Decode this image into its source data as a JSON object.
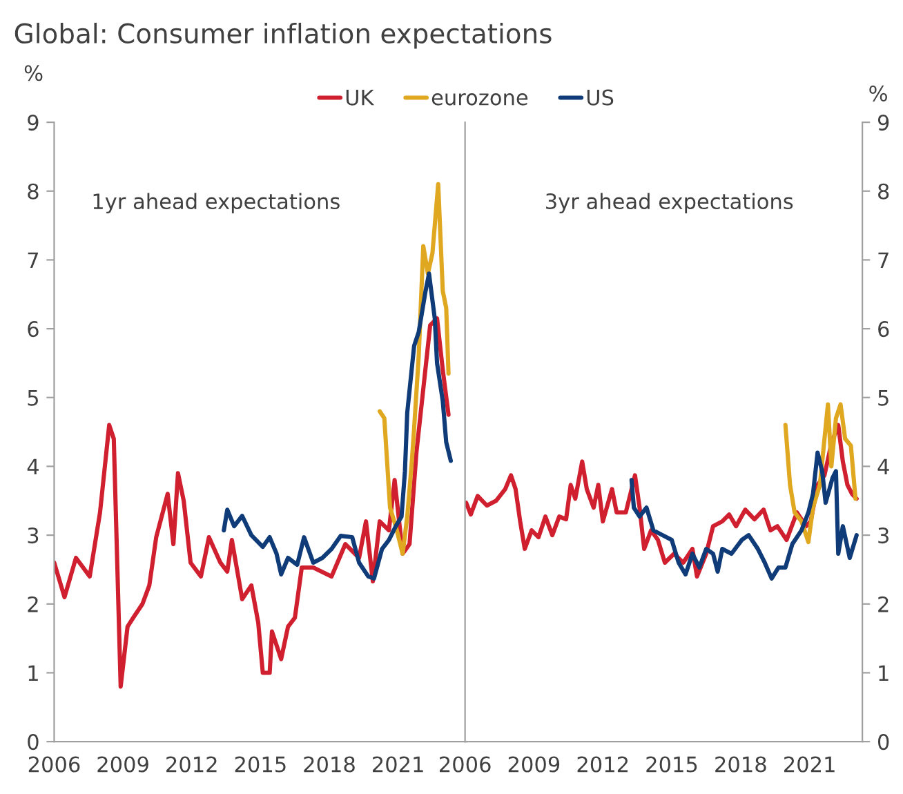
{
  "chart_data": [
    {
      "type": "line",
      "title": "Global: Consumer inflation expectations",
      "ylabel": "%",
      "annotations": [
        "1yr ahead expectations"
      ],
      "xlim": [
        2006,
        2024
      ],
      "xticks": [
        2006,
        2009,
        2012,
        2015,
        2018,
        2021
      ],
      "ylim": [
        0,
        9
      ],
      "yticks": [
        0,
        1,
        2,
        3,
        4,
        5,
        6,
        7,
        8,
        9
      ],
      "grid": false,
      "legend": "top",
      "line_style": "solid",
      "marker": "none",
      "series": [
        {
          "name": "UK",
          "color": "#d0202f",
          "x": [
            2006.0,
            2006.45,
            2006.95,
            2007.55,
            2008.0,
            2008.4,
            2008.6,
            2008.9,
            2009.2,
            2009.45,
            2009.85,
            2010.15,
            2010.45,
            2010.95,
            2011.2,
            2011.4,
            2011.65,
            2011.95,
            2012.4,
            2012.75,
            2013.25,
            2013.55,
            2013.75,
            2014.2,
            2014.6,
            2014.9,
            2015.1,
            2015.4,
            2015.5,
            2015.9,
            2016.2,
            2016.5,
            2016.8,
            2017.3,
            2018.1,
            2018.7,
            2019.3,
            2019.6,
            2019.9,
            2020.2,
            2020.6,
            2020.85,
            2021.2,
            2021.5,
            2021.8,
            2022.4,
            2022.7,
            2022.95,
            2023.2
          ],
          "values": [
            2.6,
            2.1,
            2.67,
            2.4,
            3.33,
            4.6,
            4.4,
            0.8,
            1.67,
            1.8,
            2.0,
            2.27,
            2.97,
            3.6,
            2.87,
            3.9,
            3.5,
            2.6,
            2.4,
            2.97,
            2.6,
            2.47,
            2.93,
            2.07,
            2.27,
            1.73,
            1.0,
            1.0,
            1.6,
            1.2,
            1.67,
            1.8,
            2.53,
            2.53,
            2.4,
            2.87,
            2.67,
            3.2,
            2.33,
            3.2,
            3.07,
            3.8,
            2.73,
            2.87,
            4.2,
            6.05,
            6.15,
            5.4,
            4.75
          ]
        },
        {
          "name": "eurozone",
          "color": "#e0a820",
          "x": [
            2020.2,
            2020.4,
            2020.65,
            2020.9,
            2021.2,
            2021.4,
            2021.6,
            2021.7,
            2021.9,
            2022.1,
            2022.3,
            2022.5,
            2022.75,
            2022.95,
            2023.1,
            2023.2
          ],
          "values": [
            4.8,
            4.7,
            3.4,
            3.13,
            2.73,
            3.27,
            4.07,
            4.55,
            5.6,
            7.2,
            6.8,
            7.1,
            8.1,
            6.55,
            6.3,
            5.35
          ]
        },
        {
          "name": "US",
          "color": "#0f3c78",
          "x": [
            2013.4,
            2013.55,
            2013.85,
            2014.2,
            2014.6,
            2015.1,
            2015.4,
            2015.7,
            2015.9,
            2016.2,
            2016.6,
            2016.9,
            2017.3,
            2017.7,
            2018.1,
            2018.5,
            2019.0,
            2019.3,
            2019.7,
            2019.95,
            2020.3,
            2020.6,
            2020.9,
            2021.15,
            2021.3,
            2021.4,
            2021.7,
            2021.9,
            2022.2,
            2022.35,
            2022.6,
            2022.7,
            2022.95,
            2023.1,
            2023.3
          ],
          "values": [
            3.07,
            3.37,
            3.13,
            3.28,
            3.0,
            2.83,
            2.97,
            2.73,
            2.43,
            2.67,
            2.57,
            2.97,
            2.6,
            2.67,
            2.8,
            2.99,
            2.97,
            2.6,
            2.4,
            2.37,
            2.8,
            2.93,
            3.13,
            3.27,
            3.93,
            4.78,
            5.75,
            5.95,
            6.55,
            6.8,
            6.15,
            5.5,
            4.95,
            4.35,
            4.08
          ]
        }
      ]
    },
    {
      "type": "line",
      "ylabel": "%",
      "annotations": [
        "3yr ahead expectations"
      ],
      "xlim": [
        2006,
        2023.3
      ],
      "xticks": [
        2006,
        2009,
        2012,
        2015,
        2018,
        2021
      ],
      "ylim": [
        0,
        9
      ],
      "yticks": [
        0,
        1,
        2,
        3,
        4,
        5,
        6,
        7,
        8,
        9
      ],
      "grid": false,
      "line_style": "solid",
      "marker": "none",
      "series": [
        {
          "color": "#d0202f",
          "x": [
            2006.05,
            2006.25,
            2006.55,
            2006.95,
            2007.35,
            2007.75,
            2008.0,
            2008.2,
            2008.4,
            2008.6,
            2008.9,
            2009.2,
            2009.5,
            2009.8,
            2010.1,
            2010.4,
            2010.6,
            2010.8,
            2011.1,
            2011.3,
            2011.6,
            2011.8,
            2012.0,
            2012.4,
            2012.6,
            2013.0,
            2013.4,
            2013.6,
            2013.8,
            2014.1,
            2014.4,
            2014.7,
            2015.1,
            2015.5,
            2015.9,
            2016.1,
            2016.5,
            2016.8,
            2017.2,
            2017.5,
            2017.8,
            2018.2,
            2018.6,
            2019.0,
            2019.3,
            2019.6,
            2020.0,
            2020.45,
            2020.85,
            2021.05,
            2021.35,
            2021.65,
            2021.95,
            2022.25,
            2022.45,
            2022.65,
            2022.85,
            2023.05
          ],
          "values": [
            3.47,
            3.3,
            3.57,
            3.43,
            3.5,
            3.67,
            3.87,
            3.67,
            3.2,
            2.8,
            3.07,
            2.97,
            3.27,
            3.0,
            3.27,
            3.23,
            3.73,
            3.53,
            4.07,
            3.67,
            3.4,
            3.73,
            3.2,
            3.67,
            3.33,
            3.33,
            3.87,
            3.4,
            2.8,
            3.07,
            2.93,
            2.6,
            2.73,
            2.6,
            2.8,
            2.4,
            2.73,
            3.13,
            3.2,
            3.3,
            3.13,
            3.37,
            3.23,
            3.37,
            3.07,
            3.13,
            2.93,
            3.33,
            3.13,
            3.2,
            3.73,
            3.87,
            4.33,
            4.6,
            4.07,
            3.73,
            3.6,
            3.53
          ]
        },
        {
          "color": "#e0a820",
          "x": [
            2019.95,
            2020.15,
            2020.35,
            2020.65,
            2020.95,
            2021.15,
            2021.45,
            2021.8,
            2021.95,
            2022.15,
            2022.35,
            2022.55,
            2022.8,
            2023.0
          ],
          "values": [
            4.6,
            3.73,
            3.33,
            3.2,
            2.9,
            3.4,
            3.73,
            4.9,
            4.0,
            4.7,
            4.9,
            4.4,
            4.3,
            3.53
          ]
        },
        {
          "color": "#0f3c78",
          "x": [
            2013.25,
            2013.35,
            2013.6,
            2013.9,
            2014.2,
            2014.6,
            2015.0,
            2015.3,
            2015.6,
            2015.9,
            2016.2,
            2016.5,
            2016.8,
            2017.0,
            2017.2,
            2017.6,
            2018.05,
            2018.35,
            2018.75,
            2019.05,
            2019.35,
            2019.65,
            2019.95,
            2020.25,
            2020.65,
            2020.95,
            2021.15,
            2021.35,
            2021.55,
            2021.7,
            2022.0,
            2022.15,
            2022.25,
            2022.45,
            2022.75,
            2023.05
          ],
          "values": [
            3.8,
            3.4,
            3.27,
            3.4,
            3.07,
            3.0,
            2.93,
            2.6,
            2.43,
            2.73,
            2.53,
            2.8,
            2.73,
            2.47,
            2.8,
            2.73,
            2.93,
            3.0,
            2.8,
            2.6,
            2.37,
            2.53,
            2.53,
            2.87,
            3.07,
            3.33,
            3.6,
            4.2,
            3.93,
            3.47,
            3.83,
            3.93,
            2.73,
            3.13,
            2.67,
            3.0
          ]
        }
      ]
    }
  ]
}
